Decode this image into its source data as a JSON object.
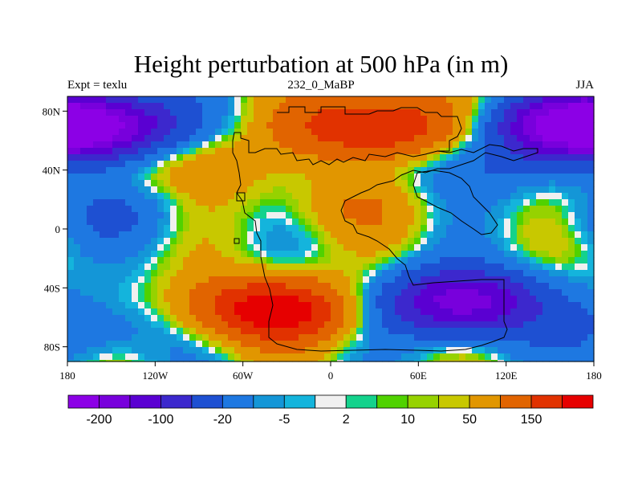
{
  "title": "Height perturbation at 500 hPa (in m)",
  "left_string": "Expt = texlu",
  "center_string": "232_0_MaBP",
  "right_string": "JJA",
  "x_ticks": [
    "180",
    "120W",
    "60W",
    "0",
    "60E",
    "120E",
    "180"
  ],
  "y_ticks": [
    "80N",
    "40N",
    "0",
    "40S",
    "80S"
  ],
  "colorbar": {
    "colors": [
      "#8c00e6",
      "#7800dc",
      "#5a00d2",
      "#3c28cd",
      "#1e50d2",
      "#1e78e1",
      "#1496d7",
      "#14b4dc",
      "#f0f0f0",
      "#14d28c",
      "#50d200",
      "#96d200",
      "#c8c800",
      "#e19600",
      "#e16400",
      "#e13200",
      "#e60000"
    ],
    "labels": [
      "-200",
      "-100",
      "-20",
      "-5",
      "2",
      "10",
      "50",
      "150"
    ]
  },
  "map": {
    "x_range": [
      -180,
      180
    ],
    "y_range": [
      -90,
      90
    ],
    "levels": [
      -250,
      -200,
      -150,
      -100,
      -50,
      -20,
      -10,
      -5,
      -2,
      2,
      5,
      10,
      20,
      50,
      100,
      150,
      200
    ],
    "highs": [
      {
        "lon": 30,
        "lat": 70,
        "amp": 170
      },
      {
        "lon": -40,
        "lat": -55,
        "amp": 190
      },
      {
        "lon": -90,
        "lat": 45,
        "amp": 45
      },
      {
        "lon": 10,
        "lat": 15,
        "amp": 40
      }
    ],
    "lows": [
      {
        "lon": -160,
        "lat": 70,
        "amp": 220
      },
      {
        "lon": 165,
        "lat": 70,
        "amp": 200
      },
      {
        "lon": 90,
        "lat": -50,
        "amp": 230
      },
      {
        "lon": -150,
        "lat": 10,
        "amp": 40
      },
      {
        "lon": -160,
        "lat": -70,
        "amp": 50
      },
      {
        "lon": 100,
        "lat": 40,
        "amp": 40
      }
    ]
  }
}
